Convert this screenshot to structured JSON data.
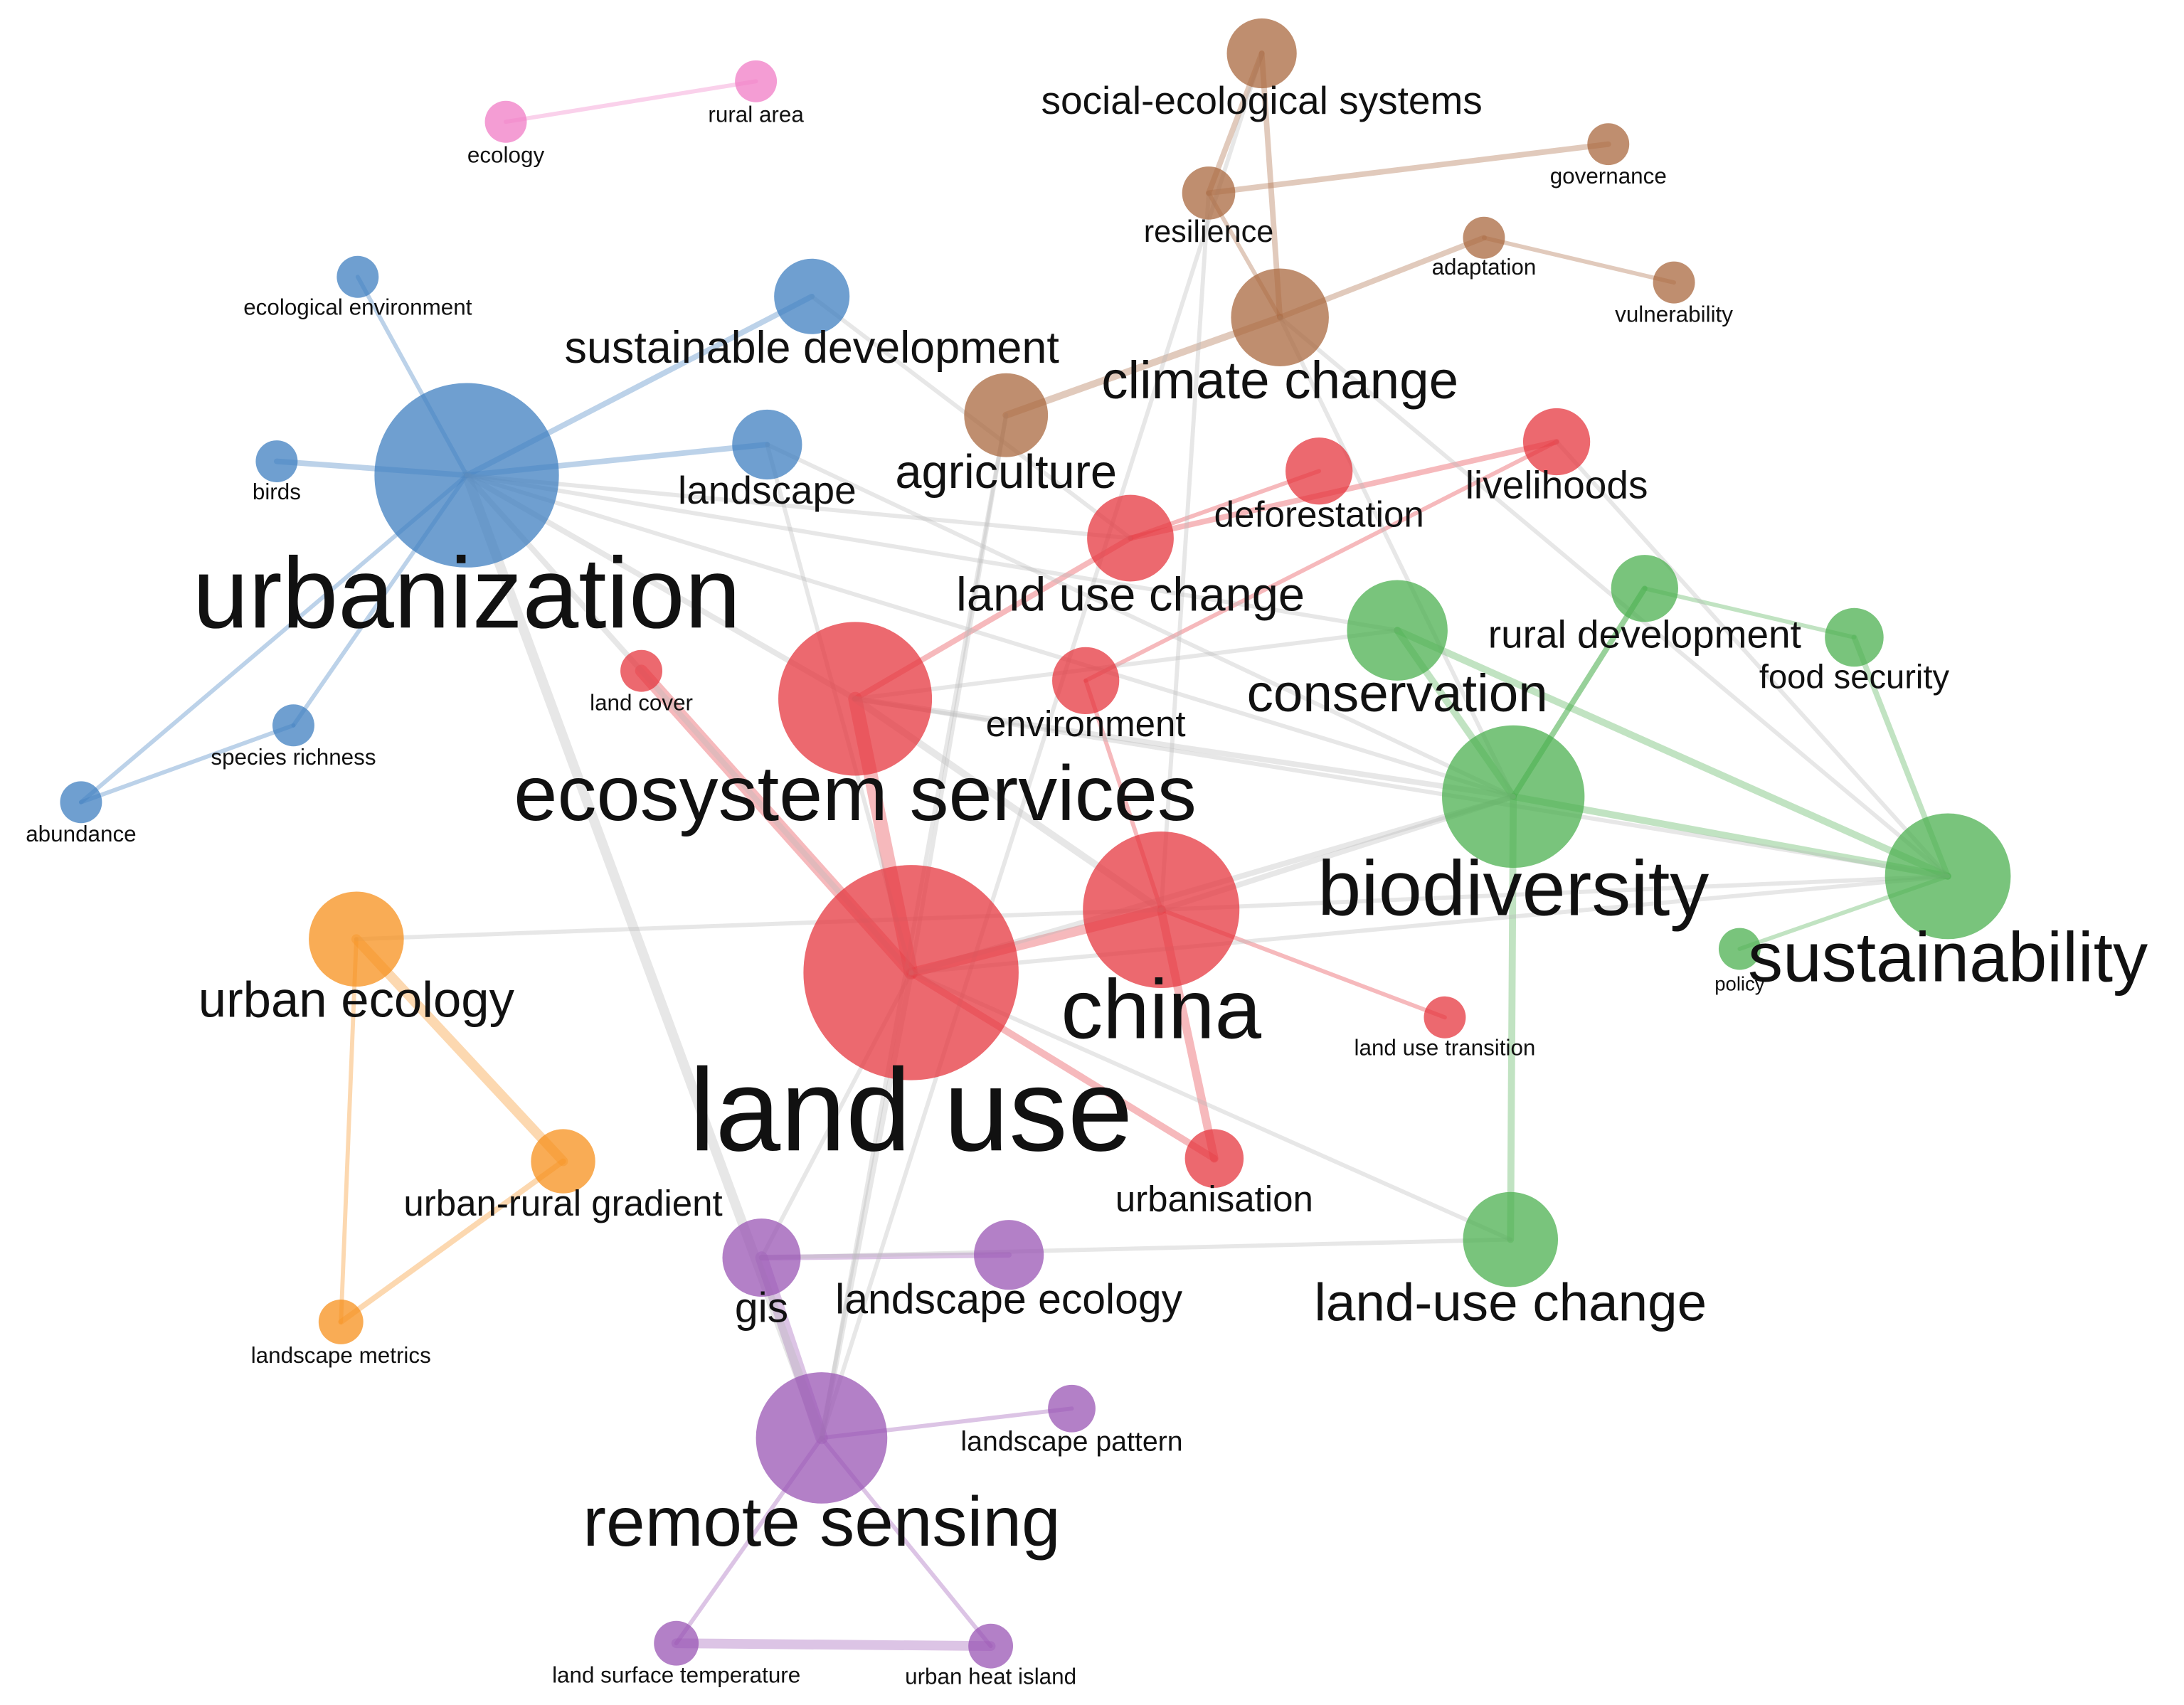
{
  "nodes": [
    {
      "label": "ecology"
    },
    {
      "label": "rural area"
    },
    {
      "label": "social-ecological systems"
    },
    {
      "label": "governance"
    },
    {
      "label": "resilience"
    },
    {
      "label": "adaptation"
    },
    {
      "label": "vulnerability"
    },
    {
      "label": "climate change"
    },
    {
      "label": "agriculture"
    },
    {
      "label": "ecological environment"
    },
    {
      "label": "sustainable development"
    },
    {
      "label": "urbanization"
    },
    {
      "label": "birds"
    },
    {
      "label": "landscape"
    },
    {
      "label": "species richness"
    },
    {
      "label": "abundance"
    },
    {
      "label": "livelihoods"
    },
    {
      "label": "deforestation"
    },
    {
      "label": "land use change"
    },
    {
      "label": "land cover"
    },
    {
      "label": "environment"
    },
    {
      "label": "ecosystem services"
    },
    {
      "label": "china"
    },
    {
      "label": "land use"
    },
    {
      "label": "land use transition"
    },
    {
      "label": "urbanisation"
    },
    {
      "label": "rural development"
    },
    {
      "label": "food security"
    },
    {
      "label": "conservation"
    },
    {
      "label": "biodiversity"
    },
    {
      "label": "sustainability"
    },
    {
      "label": "policy"
    },
    {
      "label": "land-use change"
    },
    {
      "label": "urban ecology"
    },
    {
      "label": "urban-rural gradient"
    },
    {
      "label": "landscape metrics"
    },
    {
      "label": "gis"
    },
    {
      "label": "landscape ecology"
    },
    {
      "label": "remote sensing"
    },
    {
      "label": "landscape pattern"
    },
    {
      "label": "land surface temperature"
    },
    {
      "label": "urban heat island"
    }
  ]
}
